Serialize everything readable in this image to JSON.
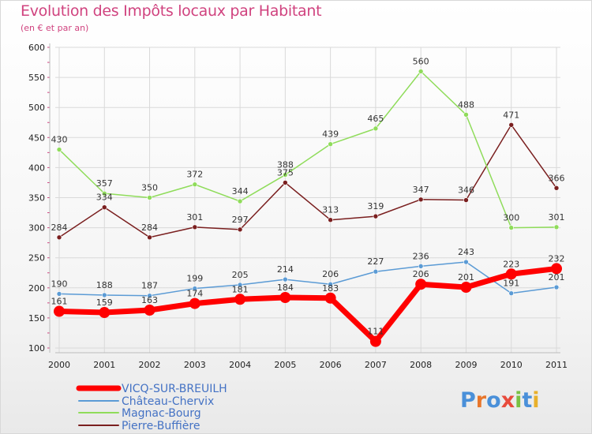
{
  "chart_data": {
    "type": "line",
    "title": "Evolution des Impôts locaux par Habitant",
    "subtitle": "(en € et par an)",
    "xlabel": "",
    "ylabel": "",
    "ylim": [
      100,
      600
    ],
    "yticks": [
      100,
      150,
      200,
      250,
      300,
      350,
      400,
      450,
      500,
      550,
      600
    ],
    "categories": [
      "2000",
      "2001",
      "2002",
      "2003",
      "2004",
      "2005",
      "2006",
      "2007",
      "2008",
      "2009",
      "2010",
      "2011"
    ],
    "grid": true,
    "legend": "bottom-left",
    "series": [
      {
        "name": "VICQ-SUR-BREUILH",
        "color": "#ff0000",
        "values": [
          161,
          159,
          163,
          174,
          181,
          184,
          183,
          111,
          206,
          201,
          223,
          232
        ],
        "labels": [
          "161",
          "159",
          "163",
          "174",
          "181",
          "184",
          "183",
          "111",
          "206",
          "201",
          "223",
          "232"
        ]
      },
      {
        "name": "Château-Chervix",
        "color": "#5b9bd5",
        "values": [
          190,
          188,
          187,
          199,
          205,
          214,
          206,
          227,
          236,
          243,
          191,
          201
        ],
        "labels": [
          "190",
          "188",
          "187",
          "199",
          "205",
          "214",
          "206",
          "227",
          "236",
          "243",
          "191",
          "201"
        ]
      },
      {
        "name": "Magnac-Bourg",
        "color": "#8fdc5a",
        "values": [
          430,
          357,
          350,
          372,
          344,
          388,
          439,
          465,
          560,
          488,
          300,
          301
        ],
        "labels": [
          "430",
          "357",
          "350",
          "372",
          "344",
          "388",
          "439",
          "465",
          "560",
          "488",
          "300",
          "301"
        ]
      },
      {
        "name": "Pierre-Buffière",
        "color": "#7a1f1f",
        "values": [
          284,
          334,
          284,
          301,
          297,
          375,
          313,
          319,
          347,
          346,
          471,
          366
        ],
        "labels": [
          "284",
          "334",
          "284",
          "301",
          "297",
          "375",
          "313",
          "319",
          "347",
          "346",
          "471",
          "366"
        ]
      }
    ]
  },
  "logo": {
    "text": "Proxiti"
  }
}
